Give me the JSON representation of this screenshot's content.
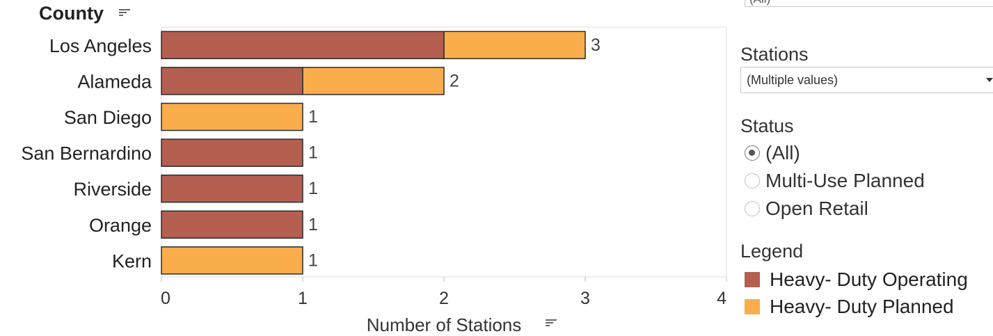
{
  "chart_data": {
    "type": "bar",
    "orientation": "horizontal",
    "stacked": true,
    "categories": [
      "Los Angeles",
      "Alameda",
      "San Diego",
      "San Bernardino",
      "Riverside",
      "Orange",
      "Kern"
    ],
    "series": [
      {
        "name": "Heavy- Duty Operating",
        "color": "#b45f50",
        "values": [
          2,
          1,
          0,
          1,
          1,
          1,
          0
        ]
      },
      {
        "name": "Heavy- Duty Planned",
        "color": "#f9ae4b",
        "values": [
          1,
          1,
          1,
          0,
          0,
          0,
          1
        ]
      }
    ],
    "totals": [
      "3",
      "2",
      "1",
      "1",
      "1",
      "1",
      "1"
    ],
    "category_axis_label": "County",
    "xlabel": "Number of Stations",
    "xlim": [
      0,
      4
    ],
    "xticks": [
      "0",
      "1",
      "2",
      "3",
      "4"
    ],
    "grid": false,
    "legend_position": "right"
  },
  "filters": {
    "stations": {
      "title": "Stations",
      "value": "(Multiple values)"
    },
    "status": {
      "title": "Status",
      "options": [
        {
          "label": "(All)",
          "selected": true
        },
        {
          "label": "Multi-Use Planned",
          "selected": false
        },
        {
          "label": "Open Retail",
          "selected": false
        }
      ]
    }
  },
  "legend": {
    "title": "Legend",
    "items": [
      {
        "label": "Heavy- Duty Operating",
        "color": "#b45f50"
      },
      {
        "label": "Heavy- Duty Planned",
        "color": "#f9ae4b"
      }
    ]
  }
}
